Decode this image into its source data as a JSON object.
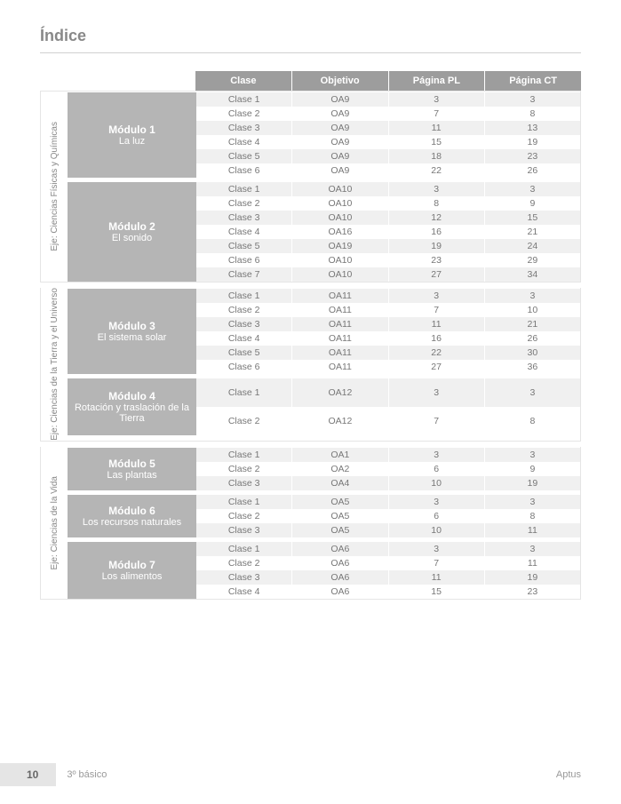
{
  "page_title": "Índice",
  "colors": {
    "header_bg": "#9d9d9d",
    "module_bg": "#b5b5b5",
    "row_alt_bg": "#f0f0f0",
    "text_muted": "#888888",
    "border": "#e5e5e5"
  },
  "headers": [
    "Clase",
    "Objetivo",
    "Página PL",
    "Página CT"
  ],
  "axes": [
    {
      "label": "Eje: Ciencias Físicas y Químicas",
      "modules": [
        {
          "title": "Módulo 1",
          "subtitle": "La luz",
          "rows": [
            [
              "Clase 1",
              "OA9",
              "3",
              "3"
            ],
            [
              "Clase 2",
              "OA9",
              "7",
              "8"
            ],
            [
              "Clase 3",
              "OA9",
              "11",
              "13"
            ],
            [
              "Clase 4",
              "OA9",
              "15",
              "19"
            ],
            [
              "Clase 5",
              "OA9",
              "18",
              "23"
            ],
            [
              "Clase 6",
              "OA9",
              "22",
              "26"
            ]
          ]
        },
        {
          "title": "Módulo 2",
          "subtitle": "El sonido",
          "rows": [
            [
              "Clase 1",
              "OA10",
              "3",
              "3"
            ],
            [
              "Clase 2",
              "OA10",
              "8",
              "9"
            ],
            [
              "Clase 3",
              "OA10",
              "12",
              "15"
            ],
            [
              "Clase 4",
              "OA16",
              "16",
              "21"
            ],
            [
              "Clase 5",
              "OA19",
              "19",
              "24"
            ],
            [
              "Clase 6",
              "OA10",
              "23",
              "29"
            ],
            [
              "Clase 7",
              "OA10",
              "27",
              "34"
            ]
          ]
        }
      ]
    },
    {
      "label": "Eje: Ciencias de la Tierra y el Universo",
      "modules": [
        {
          "title": "Módulo 3",
          "subtitle": "El sistema solar",
          "rows": [
            [
              "Clase 1",
              "OA11",
              "3",
              "3"
            ],
            [
              "Clase 2",
              "OA11",
              "7",
              "10"
            ],
            [
              "Clase 3",
              "OA11",
              "11",
              "21"
            ],
            [
              "Clase 4",
              "OA11",
              "16",
              "26"
            ],
            [
              "Clase 5",
              "OA11",
              "22",
              "30"
            ],
            [
              "Clase 6",
              "OA11",
              "27",
              "36"
            ]
          ]
        },
        {
          "title": "Módulo 4",
          "subtitle": "Rotación y traslación de la Tierra",
          "tall": true,
          "rows": [
            [
              "Clase 1",
              "OA12",
              "3",
              "3"
            ],
            [
              "Clase 2",
              "OA12",
              "7",
              "8"
            ]
          ]
        }
      ]
    },
    {
      "label": "Eje: Ciencias de la Vida",
      "modules": [
        {
          "title": "Módulo 5",
          "subtitle": "Las plantas",
          "rows": [
            [
              "Clase 1",
              "OA1",
              "3",
              "3"
            ],
            [
              "Clase 2",
              "OA2",
              "6",
              "9"
            ],
            [
              "Clase 3",
              "OA4",
              "10",
              "19"
            ]
          ]
        },
        {
          "title": "Módulo 6",
          "subtitle": "Los recursos naturales",
          "rows": [
            [
              "Clase 1",
              "OA5",
              "3",
              "3"
            ],
            [
              "Clase 2",
              "OA5",
              "6",
              "8"
            ],
            [
              "Clase 3",
              "OA5",
              "10",
              "11"
            ]
          ]
        },
        {
          "title": "Módulo 7",
          "subtitle": "Los alimentos",
          "rows": [
            [
              "Clase 1",
              "OA6",
              "3",
              "3"
            ],
            [
              "Clase 2",
              "OA6",
              "7",
              "11"
            ],
            [
              "Clase 3",
              "OA6",
              "11",
              "19"
            ],
            [
              "Clase 4",
              "OA6",
              "15",
              "23"
            ]
          ]
        }
      ]
    }
  ],
  "footer": {
    "page_number": "10",
    "grade": "3º básico",
    "brand": "Aptus"
  }
}
